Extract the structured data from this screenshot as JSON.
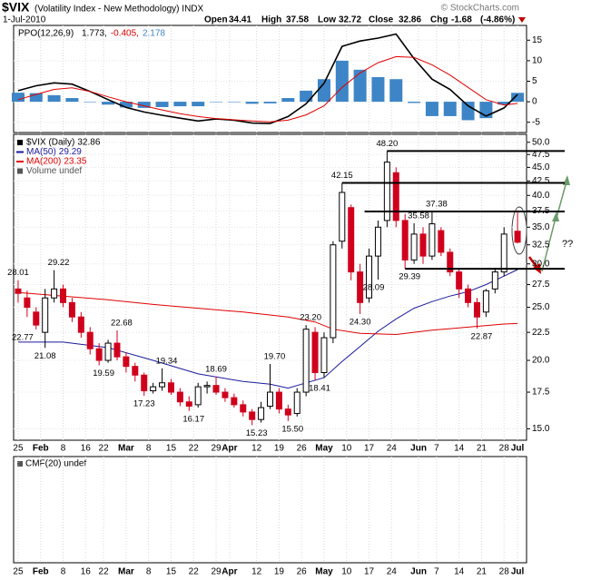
{
  "header": {
    "symbol": "$VIX",
    "name": "(Volatility Index - New Methodology) INDX",
    "source": "© StockCharts.com",
    "date": "1-Jul-2010",
    "fields": [
      {
        "name": "Open",
        "value": 34.41
      },
      {
        "name": "High",
        "value": 37.58
      },
      {
        "name": "Low",
        "value": 32.72
      },
      {
        "name": "Close",
        "value": 32.86
      },
      {
        "name": "Chg",
        "value": -1.68
      }
    ],
    "chg_pct": {
      "value": -4.86,
      "label": "(-4.86%)"
    }
  },
  "chart_data": [
    {
      "type": "line",
      "title": "PPO(12,26,9)",
      "ylim": [
        -7.5,
        18.6
      ],
      "yticks": [
        15,
        10,
        5,
        0,
        -5
      ],
      "grid": true,
      "legend_values": [
        {
          "value": 1.773,
          "label": "1.773,"
        },
        {
          "value": -0.405,
          "label": "-0.405,"
        },
        2.178
      ],
      "x": [
        0,
        4,
        8,
        12,
        16,
        20,
        24,
        28,
        32,
        36,
        40,
        44,
        48,
        52,
        56,
        60,
        64,
        68,
        72,
        76,
        80,
        84,
        88,
        92,
        96,
        100,
        104,
        108,
        111
      ],
      "series": [
        {
          "type": "histogram",
          "color": "#3d85c6",
          "values": [
            2.2,
            2.1,
            1.6,
            0.9,
            0,
            -0.7,
            -1.4,
            -1.5,
            -1.3,
            -1.1,
            -1.1,
            -0.1,
            -0.1,
            -0.5,
            -0.4,
            0.9,
            2.7,
            5.5,
            10,
            7.8,
            6,
            5.5,
            -0.3,
            -3.5,
            -3.5,
            -4.5,
            -4,
            -0.7,
            2.178
          ]
        },
        {
          "type": "line",
          "color": "#000000",
          "values": [
            2.7,
            3.9,
            4.6,
            4.3,
            2.5,
            0.5,
            -1.4,
            -2.5,
            -3.3,
            -4.0,
            -4.7,
            -4.2,
            -4.5,
            -5.2,
            -5.3,
            -3.6,
            -0.5,
            4.5,
            13.5,
            14.8,
            15.5,
            16.5,
            10.5,
            5.5,
            3.0,
            -1.0,
            -3.5,
            -1.5,
            1.773
          ]
        },
        {
          "type": "line",
          "color": "#e00000",
          "values": [
            0.5,
            1.8,
            3.0,
            3.4,
            2.5,
            1.2,
            0.0,
            -1.0,
            -2.0,
            -2.9,
            -3.6,
            -4.1,
            -4.4,
            -4.7,
            -4.9,
            -4.5,
            -3.2,
            -1.0,
            3.5,
            7.0,
            9.5,
            11.0,
            10.8,
            9.0,
            6.5,
            3.5,
            0.5,
            -0.8,
            -0.405
          ]
        }
      ]
    },
    {
      "type": "candlestick",
      "log_scale": true,
      "ylim": [
        14.3,
        51.7
      ],
      "grid": true,
      "xlim": [
        -1,
        113
      ],
      "yticks": [
        {
          "value": 15,
          "label": "15.0"
        },
        {
          "value": 17.5,
          "label": "17.5"
        },
        {
          "value": 20,
          "label": "20.0"
        },
        {
          "value": 22.5,
          "label": "22.5"
        },
        {
          "value": 25,
          "label": "25.0"
        },
        {
          "value": 27.5,
          "label": "27.5"
        },
        {
          "value": 30,
          "label": "30.0"
        },
        {
          "value": 32.5,
          "label": "32.5"
        },
        {
          "value": 35,
          "label": "35.0"
        },
        {
          "value": 37.5,
          "label": "37.5"
        },
        {
          "value": 40,
          "label": "40.0"
        },
        {
          "value": 42.5,
          "label": "42.5"
        },
        {
          "value": 45,
          "label": "45.0"
        },
        {
          "value": 47.5,
          "label": "47.5"
        },
        {
          "value": 50,
          "label": "50.0"
        }
      ],
      "xticks": [
        {
          "value": 0,
          "label": "25"
        },
        {
          "value": 5,
          "label": "Feb"
        },
        {
          "value": 10,
          "label": "8"
        },
        {
          "value": 15,
          "label": "16"
        },
        {
          "value": 19,
          "label": "22"
        },
        {
          "value": 24,
          "label": "Mar"
        },
        {
          "value": 29,
          "label": "8"
        },
        {
          "value": 34,
          "label": "15"
        },
        {
          "value": 39,
          "label": "22"
        },
        {
          "value": 44,
          "label": "29"
        },
        {
          "value": 47,
          "label": "Apr"
        },
        {
          "value": 53,
          "label": "12"
        },
        {
          "value": 58,
          "label": "19"
        },
        {
          "value": 63,
          "label": "26"
        },
        {
          "value": 68,
          "label": "May"
        },
        {
          "value": 73,
          "label": "10"
        },
        {
          "value": 78,
          "label": "17"
        },
        {
          "value": 83,
          "label": "24"
        },
        {
          "value": 89,
          "label": "Jun"
        },
        {
          "value": 93,
          "label": "7"
        },
        {
          "value": 98,
          "label": "14"
        },
        {
          "value": 103,
          "label": "21"
        },
        {
          "value": 108,
          "label": "28"
        },
        {
          "value": 111,
          "label": "Jul"
        }
      ],
      "legend": [
        {
          "name": "$VIX (Daily)",
          "value": 32.86,
          "color": "#000000"
        },
        {
          "name": "MA(50)",
          "value": 29.29,
          "color": "#1a1a9c"
        },
        {
          "name": "MA(200)",
          "value": 23.35,
          "color": "#e00000"
        },
        {
          "name": "Volume undef",
          "color": "#555555"
        }
      ],
      "candles": {
        "x": [
          0,
          2,
          4,
          6,
          8,
          10,
          12,
          14,
          16,
          18,
          20,
          22,
          24,
          26,
          28,
          30,
          32,
          34,
          36,
          38,
          40,
          42,
          44,
          46,
          48,
          50,
          52,
          54,
          56,
          58,
          60,
          62,
          64,
          66,
          68,
          70,
          72,
          74,
          76,
          78,
          80,
          82,
          84,
          86,
          88,
          90,
          92,
          94,
          96,
          98,
          100,
          102,
          104,
          106,
          108,
          111
        ],
        "open": [
          27,
          26,
          24.5,
          22.5,
          26,
          27,
          25.5,
          24,
          22.5,
          21,
          20,
          21.5,
          20.3,
          19.5,
          18.8,
          17.6,
          17.9,
          18.2,
          17.5,
          16.8,
          16.6,
          17.9,
          18,
          17.5,
          17.1,
          16.6,
          16.1,
          15.6,
          16.5,
          17.5,
          16.3,
          16,
          17.5,
          22.5,
          19,
          22,
          33,
          38,
          29,
          26,
          31,
          36,
          44,
          36,
          30.5,
          34,
          31,
          34.5,
          31.5,
          29,
          27,
          25.5,
          24.5,
          27,
          29,
          34.41
        ],
        "high": [
          28.01,
          26.8,
          25,
          27,
          29.22,
          27.5,
          26,
          24.5,
          23,
          21.5,
          21.8,
          22.68,
          20.7,
          19.8,
          19,
          18.2,
          19.34,
          18.5,
          17.8,
          17.2,
          18.2,
          18.3,
          18.69,
          17.8,
          17.4,
          16.9,
          16.3,
          16.8,
          19.7,
          17.8,
          16.6,
          17.8,
          23.2,
          23,
          22.5,
          33,
          42.15,
          38.5,
          30,
          32,
          36,
          48.2,
          45,
          37,
          35.58,
          35,
          37.38,
          35,
          32,
          29.5,
          27.5,
          26,
          27,
          29.5,
          35,
          37.58
        ],
        "low": [
          25.5,
          24,
          22.77,
          21.08,
          25.5,
          25,
          23.5,
          22,
          20.5,
          19.59,
          19.8,
          20,
          19,
          18.3,
          17.23,
          17.4,
          17.6,
          17.3,
          16.5,
          16.17,
          16.4,
          17.4,
          17.3,
          16.8,
          16.4,
          15.8,
          15.23,
          15.4,
          16.3,
          16,
          15.5,
          15.8,
          17.2,
          18.41,
          18.6,
          21.5,
          32,
          28,
          24.3,
          25.5,
          28.09,
          35,
          35,
          29.39,
          30,
          30,
          30.5,
          31,
          28.5,
          26,
          25,
          22.87,
          24,
          26.5,
          28.5,
          32.72
        ],
        "close": [
          26.5,
          25,
          23.2,
          26,
          27,
          25.5,
          24,
          22.5,
          21,
          20,
          21.5,
          20.3,
          19.5,
          18.8,
          17.6,
          17.9,
          18.2,
          17.5,
          16.8,
          16.5,
          17.9,
          18,
          17.5,
          17.1,
          16.6,
          16.1,
          15.6,
          16.4,
          17.5,
          16.3,
          15.9,
          17.5,
          22.8,
          19,
          22,
          32.5,
          40.5,
          29,
          25.5,
          31,
          35,
          46,
          36,
          30.5,
          34,
          31,
          35.5,
          31.5,
          29,
          27,
          25.5,
          24,
          26.8,
          29,
          34,
          32.86
        ]
      },
      "ma": [
        {
          "x": [
            0,
            10,
            20,
            30,
            40,
            50,
            56,
            60,
            64,
            68,
            72,
            76,
            80,
            84,
            88,
            92,
            96,
            100,
            104,
            108,
            111
          ],
          "values": [
            21.6,
            21.6,
            21.1,
            20.0,
            18.9,
            18.3,
            18.1,
            17.8,
            18.2,
            18.6,
            19.9,
            21.2,
            22.6,
            23.8,
            24.9,
            25.6,
            26.2,
            26.7,
            27.5,
            28.5,
            29.29
          ]
        },
        {
          "x": [
            0,
            10,
            20,
            30,
            40,
            50,
            60,
            66,
            70,
            76,
            84,
            92,
            100,
            108,
            111
          ],
          "values": [
            26.6,
            26.2,
            25.8,
            25.3,
            24.9,
            24.5,
            24.0,
            23.5,
            22.8,
            22.4,
            22.3,
            22.7,
            23.0,
            23.3,
            23.35
          ]
        }
      ],
      "price_labels": [
        {
          "x": 0,
          "value": 28.01
        },
        {
          "x": 1,
          "value": 22.77
        },
        {
          "x": 6,
          "value": 21.08
        },
        {
          "x": 9,
          "value": 29.22
        },
        {
          "x": 19,
          "value": 19.59
        },
        {
          "x": 23,
          "value": 22.68
        },
        {
          "x": 33,
          "value": 19.34
        },
        {
          "x": 28,
          "value": 17.23
        },
        {
          "x": 39,
          "value": 16.17
        },
        {
          "x": 44,
          "value": 18.69
        },
        {
          "x": 53,
          "value": 15.23
        },
        {
          "x": 57,
          "value": 19.7,
          "label": "19.70"
        },
        {
          "x": 61,
          "value": 15.5,
          "label": "15.50"
        },
        {
          "x": 65,
          "value": 23.2,
          "label": "23.20"
        },
        {
          "x": 67,
          "value": 18.41
        },
        {
          "x": 72,
          "value": 42.15
        },
        {
          "x": 76,
          "value": 24.3,
          "label": "24.30"
        },
        {
          "x": 79,
          "value": 28.09
        },
        {
          "x": 82,
          "value": 48.2,
          "label": "48.20"
        },
        {
          "x": 89,
          "value": 35.58
        },
        {
          "x": 87,
          "value": 29.39
        },
        {
          "x": 93,
          "value": 37.38
        },
        {
          "x": 103,
          "value": 22.87
        }
      ],
      "levels": [
        {
          "value": 48.2,
          "from": 82
        },
        {
          "value": 42.15,
          "from": 72
        },
        {
          "value": 37.38,
          "from": 77
        },
        {
          "value": 29.39,
          "from": 86
        }
      ],
      "annotation": "??"
    },
    {
      "type": "line",
      "title": "CMF(20) undef"
    }
  ]
}
